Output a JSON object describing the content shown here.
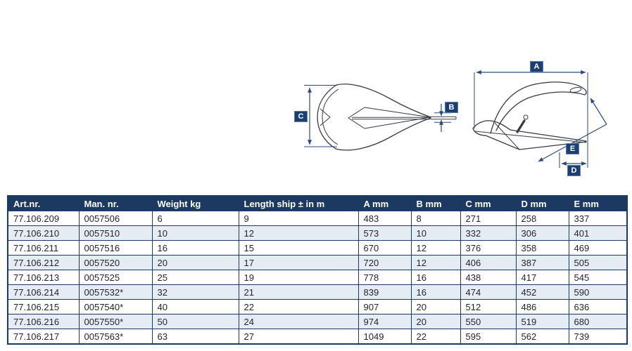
{
  "diagram": {
    "front_view": {
      "labels": {
        "c": "C",
        "b": "B"
      }
    },
    "side_view": {
      "labels": {
        "a": "A",
        "e": "E",
        "d": "D"
      }
    }
  },
  "colors": {
    "header_bg": "#1c3a61",
    "row_alt_bg": "#e6ecf4",
    "table_border": "#1c3a61",
    "dim_line": "#2a4a7d",
    "label_bg": "#1b3f72",
    "text": "#22252d"
  },
  "table": {
    "headers": [
      "Art.nr.",
      "Man. nr.",
      "Weight kg",
      "Length ship ± in m",
      "A mm",
      "B mm",
      "C mm",
      "D mm",
      "E mm"
    ],
    "rows": [
      [
        "77.106.209",
        "0057506",
        "6",
        "9",
        "483",
        "8",
        "271",
        "258",
        "337"
      ],
      [
        "77.106.210",
        "0057510",
        "10",
        "12",
        "573",
        "10",
        "332",
        "306",
        "401"
      ],
      [
        "77.106.211",
        "0057516",
        "16",
        "15",
        "670",
        "12",
        "376",
        "358",
        "469"
      ],
      [
        "77.106.212",
        "0057520",
        "20",
        "17",
        "720",
        "12",
        "406",
        "387",
        "505"
      ],
      [
        "77.106.213",
        "0057525",
        "25",
        "19",
        "778",
        "16",
        "438",
        "417",
        "545"
      ],
      [
        "77.106.214",
        "0057532*",
        "32",
        "21",
        "839",
        "16",
        "474",
        "452",
        "590"
      ],
      [
        "77.106.215",
        "0057540*",
        "40",
        "22",
        "907",
        "20",
        "512",
        "486",
        "636"
      ],
      [
        "77.106.216",
        "0057550*",
        "50",
        "24",
        "974",
        "20",
        "550",
        "519",
        "680"
      ],
      [
        "77.106.217",
        "0057563*",
        "63",
        "27",
        "1049",
        "22",
        "595",
        "562",
        "739"
      ]
    ]
  }
}
